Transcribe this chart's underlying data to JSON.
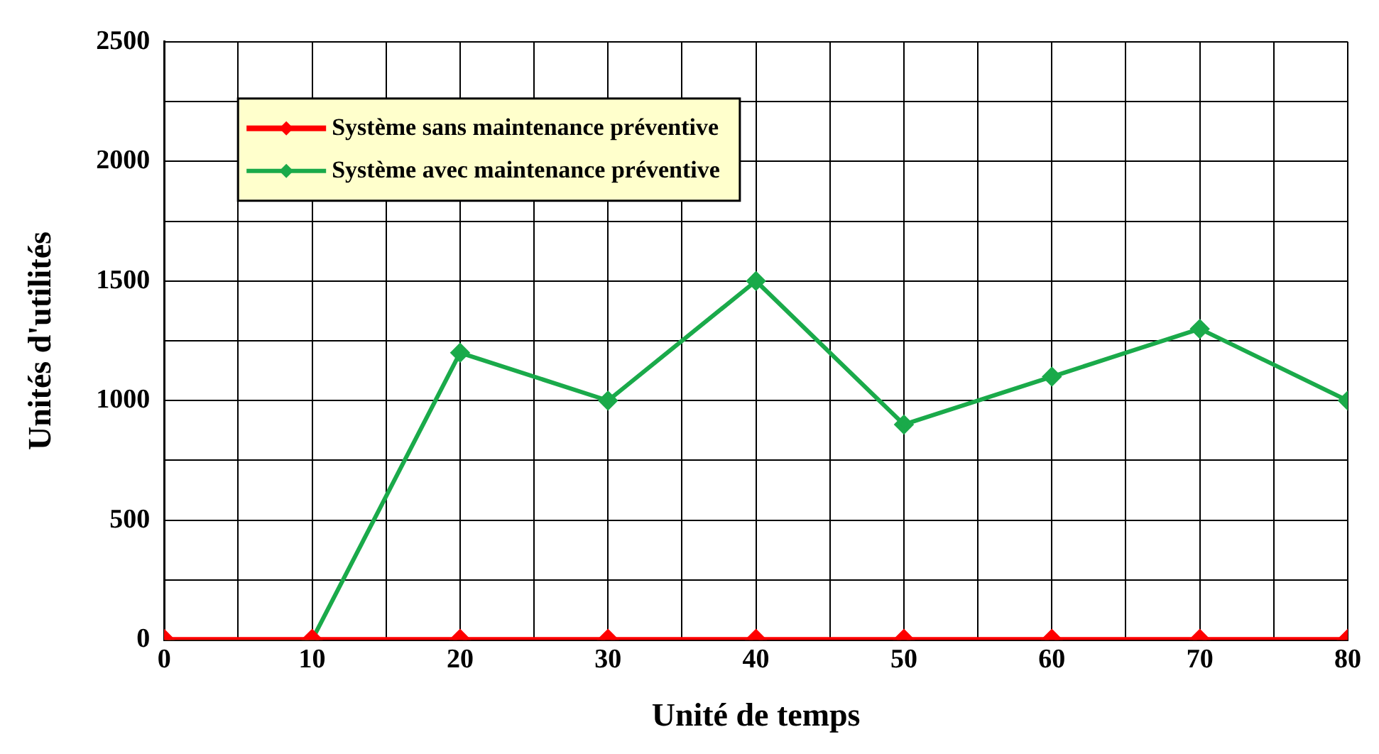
{
  "chart_data": {
    "type": "line",
    "xlabel": "Unité de temps",
    "ylabel": "Unités d'utilités",
    "x": [
      0,
      10,
      20,
      30,
      40,
      50,
      60,
      70,
      80
    ],
    "series": [
      {
        "name": "Système sans maintenance préventive",
        "color": "#ff0000",
        "values": [
          0,
          0,
          0,
          0,
          0,
          0,
          0,
          0,
          0
        ]
      },
      {
        "name": "Système avec maintenance préventive",
        "color": "#1aaa4a",
        "values": [
          0,
          0,
          1200,
          1000,
          1500,
          900,
          1100,
          1300,
          1000
        ]
      }
    ],
    "xlim": [
      0,
      80
    ],
    "xticks": [
      0,
      {
        "value": 5,
        "label": null
      },
      10,
      {
        "value": 15,
        "label": null
      },
      20,
      {
        "value": 25,
        "label": null
      },
      30,
      {
        "value": 35,
        "label": null
      },
      40,
      {
        "value": 45,
        "label": null
      },
      50,
      {
        "value": 55,
        "label": null
      },
      60,
      {
        "value": 65,
        "label": null
      },
      70,
      {
        "value": 75,
        "label": null
      },
      80
    ],
    "ylim": [
      0,
      2500
    ],
    "yticks": [
      0,
      {
        "value": 250,
        "label": null
      },
      500,
      {
        "value": 750,
        "label": null
      },
      1000,
      {
        "value": 1250,
        "label": null
      },
      1500,
      {
        "value": 1750,
        "label": null
      },
      2000,
      {
        "value": 2250,
        "label": null
      },
      2500
    ],
    "grid": true,
    "legend": "top left",
    "marker": "diamond",
    "line_style": "solid"
  }
}
